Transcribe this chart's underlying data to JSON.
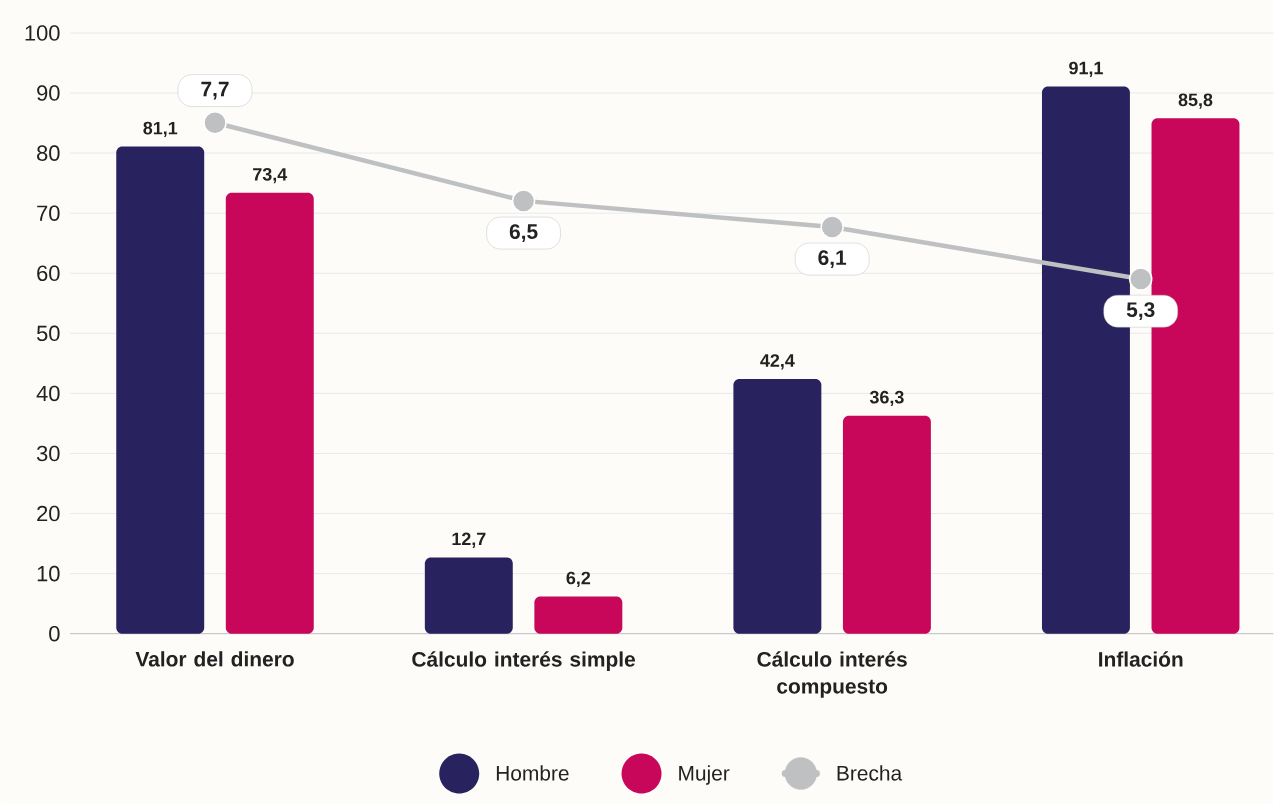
{
  "chart_data": {
    "type": "bar",
    "categories": [
      "Valor del dinero",
      "Cálculo interés simple",
      "Cálculo interés compuesto",
      "Inflación"
    ],
    "series": [
      {
        "name": "Hombre",
        "color": "#28235e",
        "values": [
          81.1,
          12.7,
          42.4,
          91.1
        ],
        "value_labels": [
          "81,1",
          "12,7",
          "42,4",
          "91,1"
        ]
      },
      {
        "name": "Mujer",
        "color": "#c8075a",
        "values": [
          73.4,
          6.2,
          36.3,
          85.8
        ],
        "value_labels": [
          "73,4",
          "6,2",
          "36,3",
          "85,8"
        ]
      },
      {
        "name": "Brecha",
        "type": "line",
        "axis": "y2",
        "color": "#bfc0c2",
        "values": [
          7.7,
          6.5,
          6.1,
          5.3
        ],
        "value_labels": [
          "7,7",
          "6,5",
          "6,1",
          "5,3"
        ]
      }
    ],
    "ylim": [
      0,
      100
    ],
    "yticks": [
      0,
      10,
      20,
      30,
      40,
      50,
      60,
      70,
      80,
      90,
      100
    ],
    "y2lim": [
      -0.15,
      9.08
    ],
    "grid": "y",
    "legend": "bottom",
    "marker": "circle",
    "line_style": "solid"
  }
}
